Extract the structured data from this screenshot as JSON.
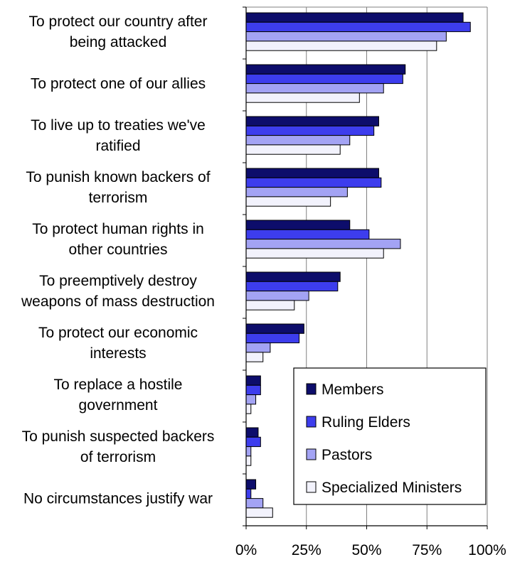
{
  "chart_data": {
    "type": "bar",
    "orientation": "horizontal",
    "title": "",
    "xlabel": "",
    "ylabel": "",
    "xlim": [
      0,
      100
    ],
    "x_unit": "%",
    "ticks": [
      "0%",
      "25%",
      "50%",
      "75%",
      "100%"
    ],
    "tick_values": [
      0,
      25,
      50,
      75,
      100
    ],
    "grid": "vertical",
    "legend_position": "bottom-right",
    "categories": [
      [
        "To protect our country after",
        "being attacked"
      ],
      [
        "To protect one of our allies"
      ],
      [
        "To live up to treaties we've",
        "ratified"
      ],
      [
        "To punish known backers of",
        "terrorism"
      ],
      [
        "To protect human rights in",
        "other countries"
      ],
      [
        "To preemptively destroy",
        "weapons of mass destruction"
      ],
      [
        "To protect our economic",
        "interests"
      ],
      [
        "To replace a hostile",
        "government"
      ],
      [
        "To punish suspected backers",
        "of terrorism"
      ],
      [
        "No circumstances justify war"
      ]
    ],
    "series": [
      {
        "name": "Members",
        "color": "#0d0d6b",
        "values": [
          90,
          66,
          55,
          55,
          43,
          39,
          24,
          6,
          5,
          4
        ]
      },
      {
        "name": "Ruling Elders",
        "color": "#3d3ded",
        "values": [
          93,
          65,
          53,
          56,
          51,
          38,
          22,
          6,
          6,
          2
        ]
      },
      {
        "name": "Pastors",
        "color": "#a3a3f4",
        "values": [
          83,
          57,
          43,
          42,
          64,
          26,
          10,
          4,
          2,
          7
        ]
      },
      {
        "name": "Specialized Ministers",
        "color": "#f2f2fc",
        "values": [
          79,
          47,
          39,
          35,
          57,
          20,
          7,
          2,
          2,
          11
        ]
      }
    ]
  }
}
